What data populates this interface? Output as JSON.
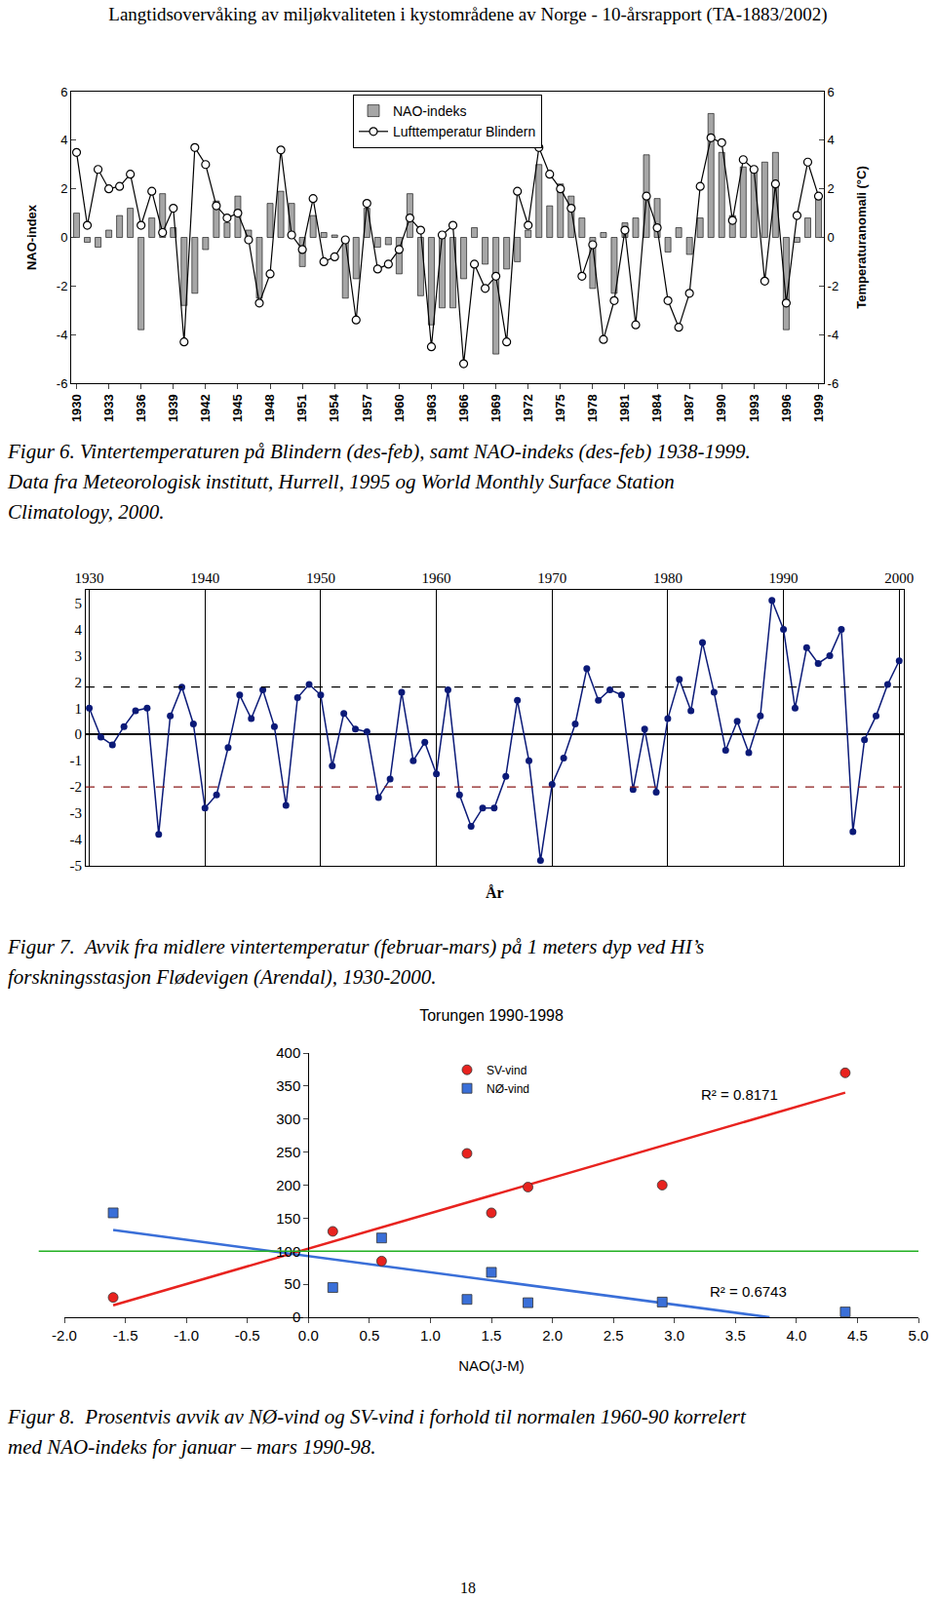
{
  "header": "Langtidsovervåking av miljøkvaliteten i kystområdene av Norge - 10-årsrapport (TA-1883/2002)",
  "page_number": 18,
  "chart_data": [
    {
      "type": "combo",
      "x": [
        1930,
        1931,
        1932,
        1933,
        1934,
        1935,
        1936,
        1937,
        1938,
        1939,
        1940,
        1941,
        1942,
        1943,
        1944,
        1945,
        1946,
        1947,
        1948,
        1949,
        1950,
        1951,
        1952,
        1953,
        1954,
        1955,
        1956,
        1957,
        1958,
        1959,
        1960,
        1961,
        1962,
        1963,
        1964,
        1965,
        1966,
        1967,
        1968,
        1969,
        1970,
        1971,
        1972,
        1973,
        1974,
        1975,
        1976,
        1977,
        1978,
        1979,
        1980,
        1981,
        1982,
        1983,
        1984,
        1985,
        1986,
        1987,
        1988,
        1989,
        1990,
        1991,
        1992,
        1993,
        1994,
        1995,
        1996,
        1997,
        1998,
        1999
      ],
      "series": [
        {
          "name": "NAO-indeks",
          "type": "bar",
          "color": "#a6a6a6",
          "values": [
            1.0,
            -0.2,
            -0.4,
            0.3,
            0.9,
            1.2,
            -3.8,
            0.8,
            1.8,
            0.4,
            -2.8,
            -2.3,
            -0.5,
            1.5,
            0.6,
            1.7,
            0.3,
            -2.5,
            1.4,
            1.9,
            1.4,
            -1.2,
            0.9,
            0.2,
            0.1,
            -2.5,
            -1.7,
            1.2,
            -0.4,
            -0.3,
            -1.5,
            1.8,
            -2.4,
            -3.6,
            -2.9,
            -2.9,
            -1.7,
            0.4,
            -1.1,
            -4.8,
            -1.3,
            -1.0,
            0.3,
            3.0,
            1.3,
            2.2,
            1.7,
            0.8,
            -2.1,
            0.2,
            -2.3,
            0.6,
            0.8,
            3.4,
            1.6,
            -0.6,
            0.4,
            -0.7,
            0.8,
            5.1,
            3.5,
            0.9,
            2.9,
            2.9,
            3.1,
            3.5,
            -3.8,
            -0.2,
            0.8,
            1.8
          ]
        },
        {
          "name": "Lufttemperatur Blindern",
          "type": "line",
          "color": "#000000",
          "marker": "circle",
          "axis": "y2",
          "values": [
            3.5,
            0.5,
            2.8,
            2.0,
            2.1,
            2.6,
            0.5,
            1.9,
            0.2,
            1.2,
            -4.3,
            3.7,
            3.0,
            1.3,
            0.8,
            1.0,
            -0.1,
            -2.7,
            -1.5,
            3.6,
            0.1,
            -0.5,
            1.6,
            -1.0,
            -0.8,
            -0.1,
            -3.4,
            1.4,
            -1.3,
            -1.1,
            -0.5,
            0.8,
            0.3,
            -4.5,
            0.1,
            0.5,
            -5.2,
            -1.1,
            -2.1,
            -1.6,
            -4.3,
            1.9,
            0.5,
            3.7,
            2.6,
            2.0,
            1.2,
            -1.6,
            -0.3,
            -4.2,
            -2.6,
            0.3,
            -3.6,
            1.7,
            0.4,
            -2.6,
            -3.7,
            -2.3,
            2.1,
            4.1,
            3.9,
            0.7,
            3.2,
            2.8,
            -1.8,
            2.2,
            -2.7,
            0.9,
            3.1,
            1.7
          ]
        }
      ],
      "y_label": "NAO-index",
      "y2_label": "Temperaturanomali (°C)",
      "xlim": [
        1929.5,
        1999.5
      ],
      "xticks": [
        1930,
        1933,
        1936,
        1939,
        1942,
        1945,
        1948,
        1951,
        1954,
        1957,
        1960,
        1963,
        1966,
        1969,
        1972,
        1975,
        1978,
        1981,
        1984,
        1987,
        1990,
        1993,
        1996,
        1999
      ],
      "ylim": [
        -6,
        6
      ],
      "yticks": [
        -6,
        -4,
        -2,
        0,
        2,
        4,
        6
      ],
      "y2lim": [
        -6,
        6
      ],
      "y2ticks": [
        -6,
        -4,
        -2,
        0,
        2,
        4,
        6
      ],
      "legend": "top",
      "grid": false,
      "caption": [
        "Figur 6. Vintertemperaturen på Blindern (des-feb), samt NAO-indeks (des-feb) 1938-1999.",
        "Data fra Meteorologisk institutt, Hurrell, 1995 og World Monthly Surface Station",
        "Climatology, 2000."
      ]
    },
    {
      "type": "line",
      "x": [
        1930,
        1931,
        1932,
        1933,
        1934,
        1935,
        1936,
        1937,
        1938,
        1939,
        1940,
        1941,
        1942,
        1943,
        1944,
        1945,
        1946,
        1947,
        1948,
        1949,
        1950,
        1951,
        1952,
        1953,
        1954,
        1955,
        1956,
        1957,
        1958,
        1959,
        1960,
        1961,
        1962,
        1963,
        1964,
        1965,
        1966,
        1967,
        1968,
        1969,
        1970,
        1971,
        1972,
        1973,
        1974,
        1975,
        1976,
        1977,
        1978,
        1979,
        1980,
        1981,
        1982,
        1983,
        1984,
        1985,
        1986,
        1987,
        1988,
        1989,
        1990,
        1991,
        1992,
        1993,
        1994,
        1995,
        1996,
        1997,
        1998,
        1999,
        2000
      ],
      "values": [
        1.0,
        -0.1,
        -0.4,
        0.3,
        0.9,
        1.0,
        -3.8,
        0.7,
        1.8,
        0.4,
        -2.8,
        -2.3,
        -0.5,
        1.5,
        0.6,
        1.7,
        0.3,
        -2.7,
        1.4,
        1.9,
        1.5,
        -1.2,
        0.8,
        0.2,
        0.1,
        -2.4,
        -1.7,
        1.6,
        -1.0,
        -0.3,
        -1.5,
        1.7,
        -2.3,
        -3.5,
        -2.8,
        -2.8,
        -1.6,
        1.3,
        -1.0,
        -4.8,
        -1.9,
        -0.9,
        0.4,
        2.5,
        1.3,
        1.7,
        1.5,
        -2.1,
        0.2,
        -2.2,
        0.6,
        2.1,
        0.9,
        3.5,
        1.6,
        -0.6,
        0.5,
        -0.7,
        0.7,
        5.1,
        4.0,
        1.0,
        3.3,
        2.7,
        3.0,
        4.0,
        -3.7,
        -0.2,
        0.7,
        1.9,
        2.8
      ],
      "color": "#0b1a78",
      "marker": "circle",
      "x_label": "År",
      "xlim": [
        1929.7,
        2000.4
      ],
      "xticks": [
        1930,
        1940,
        1950,
        1960,
        1970,
        1980,
        1990,
        2000
      ],
      "ylim": [
        -5,
        5.5
      ],
      "yticks": [
        -5,
        -4,
        -3,
        -2,
        -1,
        0,
        1,
        2,
        3,
        4,
        5
      ],
      "reference_lines": [
        {
          "value": 1.8,
          "color": "#000000",
          "line_style": "dash"
        },
        {
          "value": -2,
          "color": "#8b1a1a",
          "line_style": "dash"
        }
      ],
      "grid": "x",
      "caption": [
        "Figur 7.  Avvik fra midlere vintertemperatur (februar-mars) på 1 meters dyp ved HI’s",
        "forskningsstasjon Flødevigen (Arendal), 1930-2000."
      ]
    },
    {
      "type": "scatter",
      "title": "Torungen 1990-1998",
      "x_label": "NAO(J-M)",
      "series": [
        {
          "name": "SV-vind",
          "color": "#e8231f",
          "marker": "circle",
          "x": [
            -1.6,
            0.2,
            0.6,
            1.3,
            1.5,
            1.8,
            2.9,
            4.4
          ],
          "values": [
            30,
            130,
            85,
            248,
            158,
            197,
            200,
            370
          ],
          "trend": {
            "x": [
              -1.6,
              4.4
            ],
            "values": [
              18,
              340
            ]
          }
        },
        {
          "name": "NØ-vind",
          "color": "#3a6fd8",
          "marker": "square",
          "x": [
            -1.6,
            0.2,
            0.6,
            1.3,
            1.5,
            1.8,
            2.9,
            4.4
          ],
          "values": [
            158,
            45,
            120,
            27,
            68,
            22,
            23,
            8
          ],
          "trend": {
            "x": [
              -1.6,
              3.78
            ],
            "values": [
              132,
              0
            ]
          }
        }
      ],
      "annotations": [
        {
          "text": "R² = 0.8171",
          "x": 3.2,
          "y": 338
        },
        {
          "text": "R² = 0.6743",
          "x": 3.27,
          "y": 39
        }
      ],
      "reference_lines": [
        {
          "value": 100,
          "color": "#22b022",
          "line_style": "solid"
        }
      ],
      "xlim": [
        -2,
        5
      ],
      "xticks": [
        {
          "value": -2,
          "label": "-2.0"
        },
        {
          "value": -1.5,
          "label": "-1.5"
        },
        {
          "value": -1,
          "label": "-1.0"
        },
        {
          "value": -0.5,
          "label": "-0.5"
        },
        {
          "value": 0,
          "label": "0.0"
        },
        {
          "value": 0.5,
          "label": "0.5"
        },
        {
          "value": 1,
          "label": "1.0"
        },
        {
          "value": 1.5,
          "label": "1.5"
        },
        {
          "value": 2,
          "label": "2.0"
        },
        {
          "value": 2.5,
          "label": "2.5"
        },
        {
          "value": 3,
          "label": "3.0"
        },
        {
          "value": 3.5,
          "label": "3.5"
        },
        {
          "value": 4,
          "label": "4.0"
        },
        {
          "value": 4.5,
          "label": "4.5"
        },
        {
          "value": 5,
          "label": "5.0"
        }
      ],
      "ylim": [
        0,
        400
      ],
      "yticks": [
        0,
        50,
        100,
        150,
        200,
        250,
        300,
        350,
        400
      ],
      "legend": "top",
      "grid": false,
      "caption": [
        "Figur 8.  Prosentvis avvik av NØ-vind og SV-vind i forhold til normalen 1960-90 korrelert",
        "med NAO-indeks for januar – mars 1990-98."
      ]
    }
  ]
}
